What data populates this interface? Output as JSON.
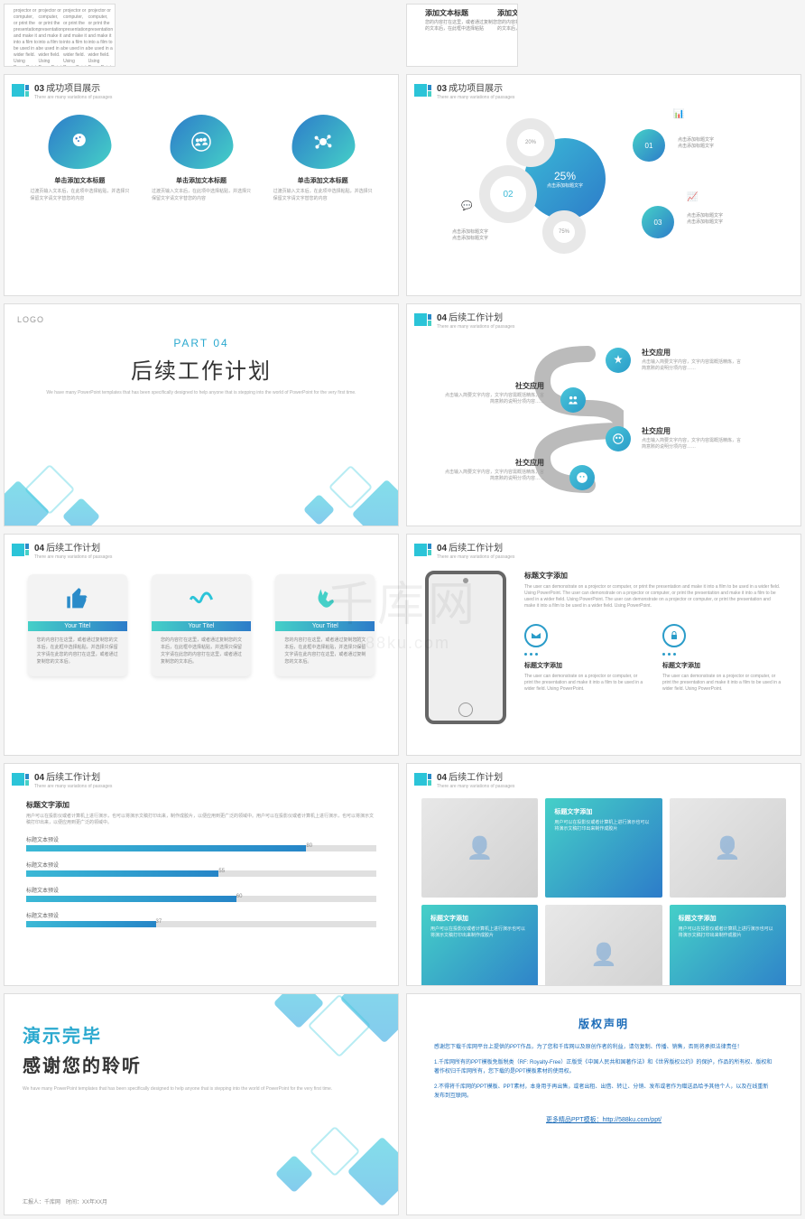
{
  "colors": {
    "teal": "#2bc4d8",
    "blue": "#2a8bc9",
    "darkblue": "#1a6bb8",
    "grad_teal": "#45d0c8",
    "grad_blue": "#2d7cc9"
  },
  "watermark": {
    "main": "千库网",
    "sub": "588ku.com"
  },
  "top_partial_left": {
    "desc": "projector or computer, or print the presentation and make it into a film to be used in a wider field. Using PowerPoint."
  },
  "top_partial_right": {
    "txt_title": "添加文本标题",
    "txt_desc": "您的内容打在这里，或者通过复制您的文本后，在此框中选择粘贴"
  },
  "s3": {
    "num": "03",
    "title": "成功项目展示",
    "sub": "There are many variations of passages",
    "item_title": "单击添加文本标题",
    "item_desc": "过渡页输入文本后，在此项中选择粘贴，并选择只保留文字请文字替您的内容"
  },
  "s4": {
    "num": "03",
    "title": "成功项目展示",
    "sub": "There are many variations of passages",
    "center_pct": "25%",
    "center_label": "点击添加标题文字",
    "bub1_pct": "20%",
    "bub2_num": "02",
    "bub3_pct": "75%",
    "n01": "01",
    "n02": "02",
    "n03": "03",
    "label": "点击添加标题文字\n点击添加标题文字"
  },
  "s5": {
    "logo": "LOGO",
    "part": "PART 04",
    "title": "后续工作计划",
    "desc": "We have many PowerPoint templates that has been specifically designed to help anyone that is stepping into the world of PowerPoint for the very first time."
  },
  "s6": {
    "num": "04",
    "title": "后续工作计划",
    "sub": "There are many variations of passages",
    "node_title": "社交应用",
    "node_desc_r": "点击输入简要文字内容，文字内容需概括精炼，言简意赅的说明分项内容……",
    "node_desc_l": "点击输入简要文字内容，文字内容需概括精炼，言简意赅的说明分项内容……"
  },
  "s7": {
    "num": "04",
    "title": "后续工作计划",
    "sub": "There are many variations of passages",
    "banner": "Your Titel",
    "desc1": "您的内容打在这里，或者通过复制您的文本后，在此框中选择粘贴，并选择只保留文字请在此您的内容打在这里，或者通过复制您的文本后。",
    "desc2": "您的内容打在这里，或者通过复制您的文本后，在此框中选择粘贴，并选择只保留文字请在此您的内容打在这里，或者通过复制您的文本后。",
    "desc3": "您的内容打在这里，或者通过复制您的文本后，在此框中选择粘贴，并选择只保留文字请在此内容打在这里，或者通过复制您的文本后。"
  },
  "s8": {
    "num": "04",
    "title": "后续工作计划",
    "sub": "There are many variations of passages",
    "main_title": "标题文字添加",
    "main_desc": "The user can demonstrate on a projector or computer, or print the presentation and make it into a film to be used in a wider field. Using PowerPoint. The user can demonstrate on a projector or computer, or print the presentation and make it into a film to be used in a wider field. Using PowerPoint. The user can demonstrate on a projector or computer, or print the presentation and make it into a film to be used in a wider field. Using PowerPoint.",
    "col_title": "标题文字添加",
    "col_desc": "The user can demonstrate on a projector or computer, or print the presentation and make it into a film to be used in a wider field. Using PowerPoint."
  },
  "s9": {
    "num": "04",
    "title": "后续工作计划",
    "sub": "There are many variations of passages",
    "heading": "标题文字添加",
    "heading_desc": "用户可以在投影仪或者计算机上进行演示，也可以将演示文稿打印出来，制作成胶片，以便应用到更广泛的领域中。用户可以在投影仪或者计算机上进行演示，也可以将演示文稿打印出来，以便应用到更广泛的领域中。",
    "bars": [
      {
        "label": "标题文本预设",
        "val": 80
      },
      {
        "label": "标题文本预设",
        "val": 55
      },
      {
        "label": "标题文本预设",
        "val": 60
      },
      {
        "label": "标题文本预设",
        "val": 37
      }
    ]
  },
  "s10": {
    "num": "04",
    "title": "后续工作计划",
    "sub": "There are many variations of passages",
    "box_title": "标题文字添加",
    "box_desc": "用户可以在投影仪或者计算机上进行演示也可以将演示文稿打印出来制作成胶片"
  },
  "s11": {
    "line1": "演示完毕",
    "line2": "感谢您的聆听",
    "desc": "We have many PowerPoint templates that has been specifically designed to help anyone that is stepping into the world of PowerPoint for the very first time.",
    "foot": "汇报人：千库网　时间：XX年XX月"
  },
  "s12": {
    "title": "版权声明",
    "p1": "感谢您下载千库网平台上提供的PPT作品，为了您和千库网以及原创作者的利益，请勿复制、传播、销售，否则将承担法律责任！",
    "p2": "1.千库网所有的PPT模板免版税类（RF: Royalty-Free）正版受《中国人民共和国著作法》和《世界版权公约》的保护，作品的所有权、版权和著作权归千库网所有，您下载的是PPT模板素材的使用权。",
    "p3": "2.不得将千库网的PPT模板、PPT素材，本身用于再出售，或者出租、出借、转让、分销、发布或者作为赠送品给予其他个人，以及在线重新发布到互联网。",
    "link": "更多精品PPT模板：http://588ku.com/ppt/"
  }
}
